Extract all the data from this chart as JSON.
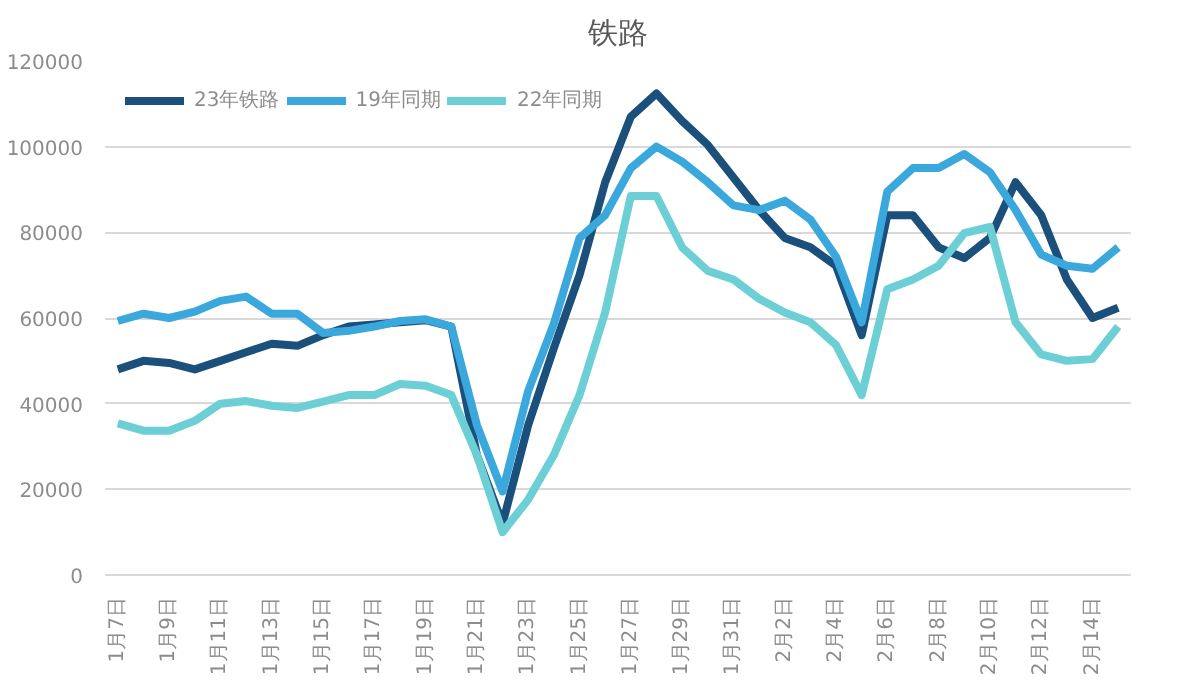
{
  "chart_data": {
    "type": "line",
    "title": "铁路",
    "categories": [
      "1月7日",
      null,
      "1月9日",
      null,
      "1月11日",
      null,
      "1月13日",
      null,
      "1月15日",
      null,
      "1月17日",
      null,
      "1月19日",
      null,
      "1月21日",
      null,
      "1月23日",
      null,
      "1月25日",
      null,
      "1月27日",
      null,
      "1月29日",
      null,
      "1月31日",
      null,
      "2月2日",
      null,
      "2月4日",
      null,
      "2月6日",
      null,
      "2月8日",
      null,
      "2月10日",
      null,
      "2月12日",
      null,
      "2月14日",
      null
    ],
    "series": [
      {
        "name": "23年铁路",
        "color": "#1b4f7c",
        "values": [
          48000,
          50000,
          49500,
          48000,
          50000,
          52000,
          54000,
          53500,
          56000,
          58000,
          58500,
          59000,
          59500,
          58000,
          28000,
          12000,
          35000,
          53000,
          70000,
          91700,
          107000,
          112400,
          106000,
          100400,
          92800,
          85200,
          78700,
          76500,
          72200,
          56000,
          84000,
          84000,
          76500,
          74000,
          78700,
          91700,
          84000,
          69000,
          60000,
          62400
        ]
      },
      {
        "name": "19年同期",
        "color": "#3aa8dc",
        "values": [
          59300,
          61000,
          60000,
          61500,
          64000,
          65000,
          61000,
          61000,
          56500,
          57000,
          58000,
          59300,
          59700,
          58000,
          35000,
          19500,
          43000,
          58700,
          78700,
          84000,
          95000,
          100000,
          96500,
          91700,
          86300,
          85200,
          87400,
          83000,
          74300,
          59000,
          89500,
          95000,
          95000,
          98300,
          94000,
          85200,
          74800,
          72200,
          71500,
          76500
        ]
      },
      {
        "name": "22年同期",
        "color": "#6dcfd6",
        "values": [
          35400,
          33700,
          33700,
          36000,
          40000,
          40600,
          39500,
          39000,
          40500,
          42000,
          42000,
          44600,
          44200,
          42000,
          28000,
          10000,
          17600,
          28000,
          42000,
          61300,
          88500,
          88500,
          76500,
          71000,
          69000,
          64500,
          61300,
          59000,
          53700,
          42000,
          66700,
          69000,
          72200,
          79800,
          81300,
          59000,
          51500,
          50000,
          50400,
          58000
        ]
      }
    ],
    "ylim": [
      0,
      120000
    ],
    "yticks": [
      0,
      20000,
      40000,
      60000,
      80000,
      100000,
      120000
    ],
    "grid": "y",
    "legend": "top",
    "marker": "none",
    "line_style": "solid"
  }
}
